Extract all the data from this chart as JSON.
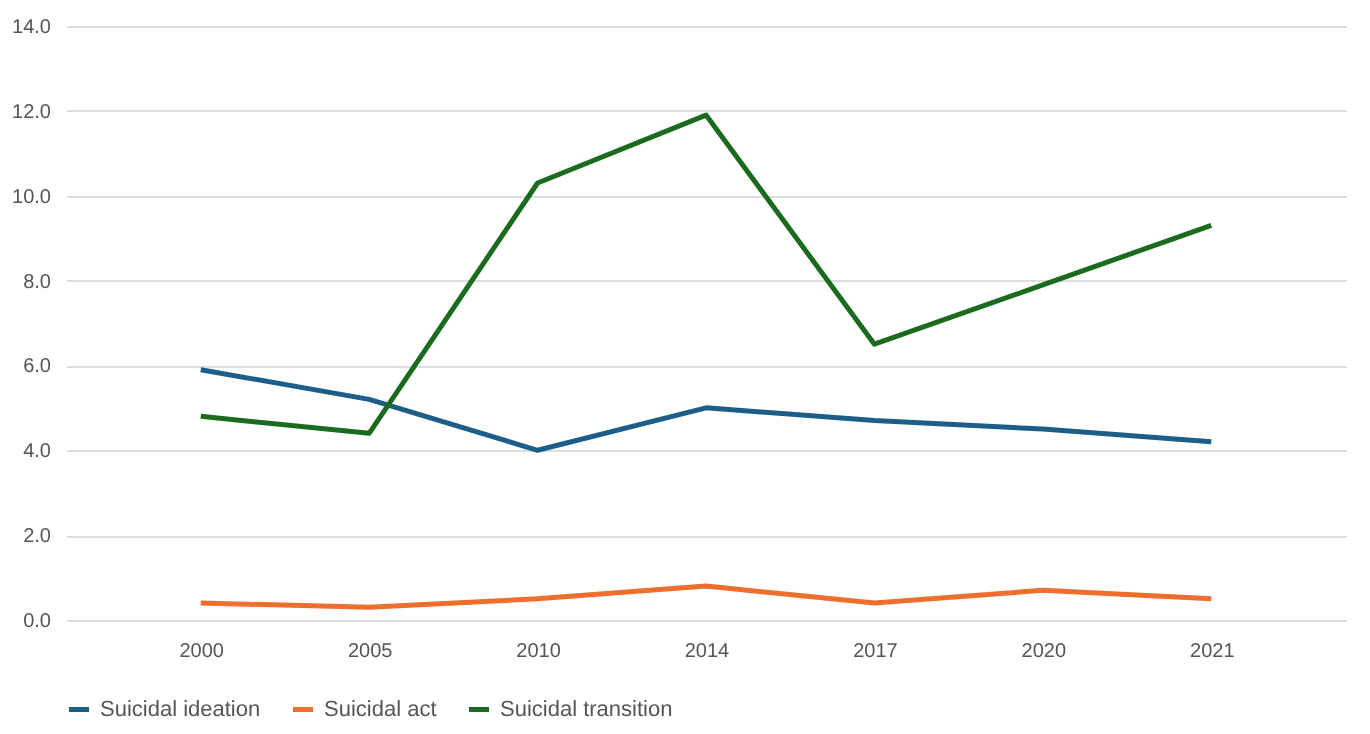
{
  "chart_data": {
    "type": "line",
    "categories": [
      "2000",
      "2005",
      "2010",
      "2014",
      "2017",
      "2020",
      "2021"
    ],
    "series": [
      {
        "name": "Suicidal ideation",
        "color": "#1c5d8a",
        "values": [
          5.9,
          5.2,
          4.0,
          5.0,
          4.7,
          4.5,
          4.2
        ]
      },
      {
        "name": "Suicidal act",
        "color": "#ee6f2d",
        "values": [
          0.4,
          0.3,
          0.5,
          0.8,
          0.4,
          0.7,
          0.5
        ]
      },
      {
        "name": "Suicidal transition",
        "color": "#1b6b1f",
        "values": [
          4.8,
          4.4,
          10.3,
          11.9,
          6.5,
          7.9,
          9.3
        ]
      }
    ],
    "ylim": [
      0,
      14
    ],
    "yticks": [
      {
        "value": 0,
        "label": "0.0"
      },
      {
        "value": 2,
        "label": "2.0"
      },
      {
        "value": 4,
        "label": "4.0"
      },
      {
        "value": 6,
        "label": "6.0"
      },
      {
        "value": 8,
        "label": "8.0"
      },
      {
        "value": 10,
        "label": "10.0"
      },
      {
        "value": 12,
        "label": "12.0"
      },
      {
        "value": 14,
        "label": "14.0"
      }
    ],
    "grid": "y",
    "legend": "bottom",
    "marker": "none",
    "line_style": "solid"
  }
}
